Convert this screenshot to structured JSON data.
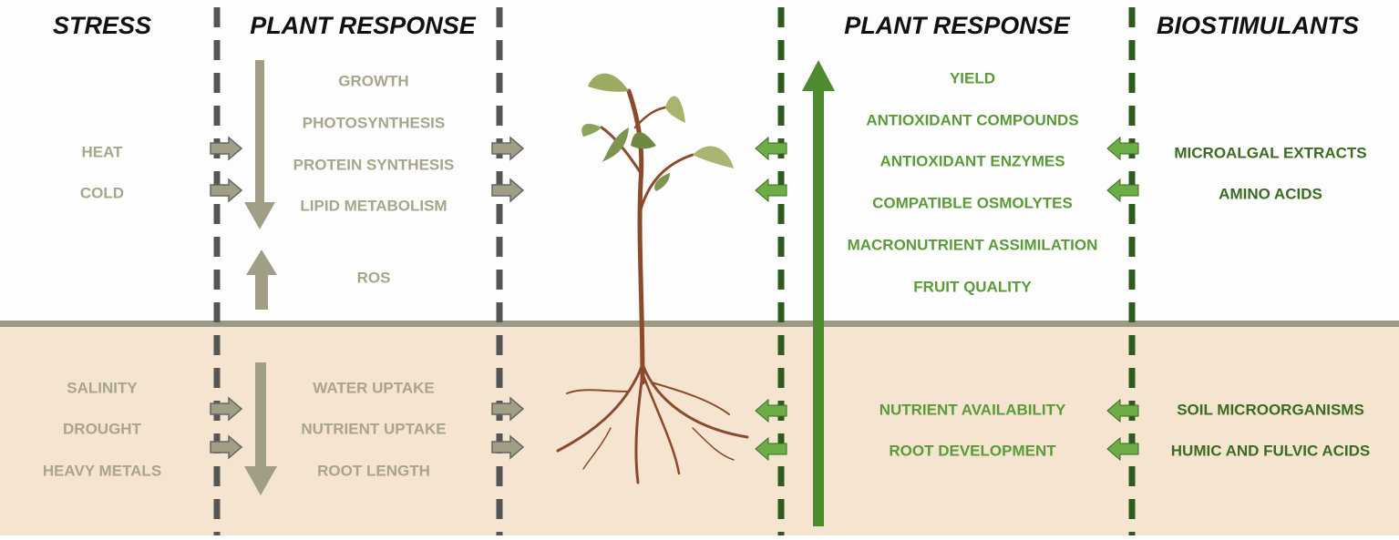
{
  "headers": [
    "STRESS",
    "PLANT RESPONSE",
    "PLANT RESPONSE",
    "BIOSTIMULANTS"
  ],
  "stress": {
    "above": [
      "HEAT",
      "COLD"
    ],
    "below": [
      "SALINITY",
      "DROUGHT",
      "HEAVY METALS"
    ]
  },
  "negative_response": {
    "above": [
      "GROWTH",
      "PHOTOSYNTHESIS",
      "PROTEIN SYNTHESIS",
      "LIPID METABOLISM",
      "ROS"
    ],
    "below": [
      "WATER UPTAKE",
      "NUTRIENT UPTAKE",
      "ROOT LENGTH"
    ]
  },
  "positive_response": {
    "above": [
      "YIELD",
      "ANTIOXIDANT COMPOUNDS",
      "ANTIOXIDANT ENZYMES",
      "COMPATIBLE OSMOLYTES",
      "MACRONUTRIENT ASSIMILATION",
      "FRUIT QUALITY"
    ],
    "below": [
      "NUTRIENT AVAILABILITY",
      "ROOT DEVELOPMENT"
    ]
  },
  "biostimulants": {
    "above": [
      "MICROALGAL EXTRACTS",
      "AMINO ACIDS"
    ],
    "below": [
      "SOIL MICROORGANISMS",
      "HUMIC AND FULVIC ACIDS"
    ]
  }
}
